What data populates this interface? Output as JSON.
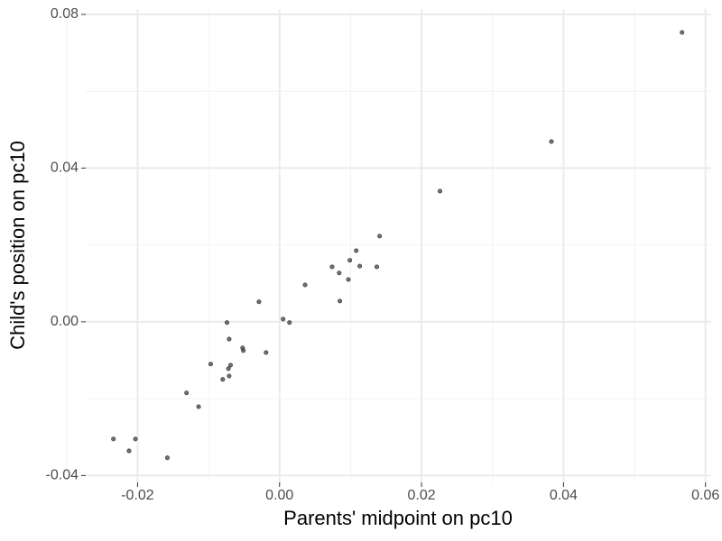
{
  "chart_data": {
    "type": "scatter",
    "x_label": "Parents' midpoint on pc10",
    "y_label": "Child's position on pc10",
    "xlim": [
      -0.0273,
      0.0608
    ],
    "ylim": [
      -0.0418,
      0.0814
    ],
    "xticks": [
      -0.02,
      {
        "value": 0,
        "label": "0.00"
      },
      0.02,
      0.04,
      0.06
    ],
    "yticks": [
      -0.04,
      {
        "value": 0,
        "label": "0.00"
      },
      0.04,
      0.08
    ],
    "xminorticks": [
      -0.03,
      -0.01,
      0.01,
      0.03,
      0.05
    ],
    "yminorticks": [
      -0.02,
      0.02,
      0.06
    ],
    "grid": true,
    "color": "#333333",
    "x": [
      0.0567,
      0.0383,
      0.0226,
      0.0141,
      0.0108,
      0.0099,
      0.0074,
      0.0113,
      0.0137,
      0.0084,
      0.0097,
      0.0036,
      0.0085,
      -0.0029,
      0.0005,
      0.0014,
      -0.0074,
      -0.0071,
      -0.0052,
      -0.0051,
      -0.0019,
      -0.0097,
      -0.0069,
      -0.0072,
      -0.0071,
      -0.008,
      -0.0131,
      -0.0114,
      -0.0234,
      -0.0203,
      -0.0212,
      -0.0158
    ],
    "values": [
      0.0753,
      0.0469,
      0.034,
      0.0223,
      0.0185,
      0.016,
      0.0143,
      0.0145,
      0.0143,
      0.0127,
      0.011,
      0.0096,
      0.0054,
      0.0052,
      0.0007,
      -0.0002,
      -0.0002,
      -0.0045,
      -0.0068,
      -0.0075,
      -0.008,
      -0.011,
      -0.0113,
      -0.0122,
      -0.0141,
      -0.015,
      -0.0185,
      -0.0221,
      -0.0305,
      -0.0305,
      -0.0336,
      -0.0354
    ]
  }
}
